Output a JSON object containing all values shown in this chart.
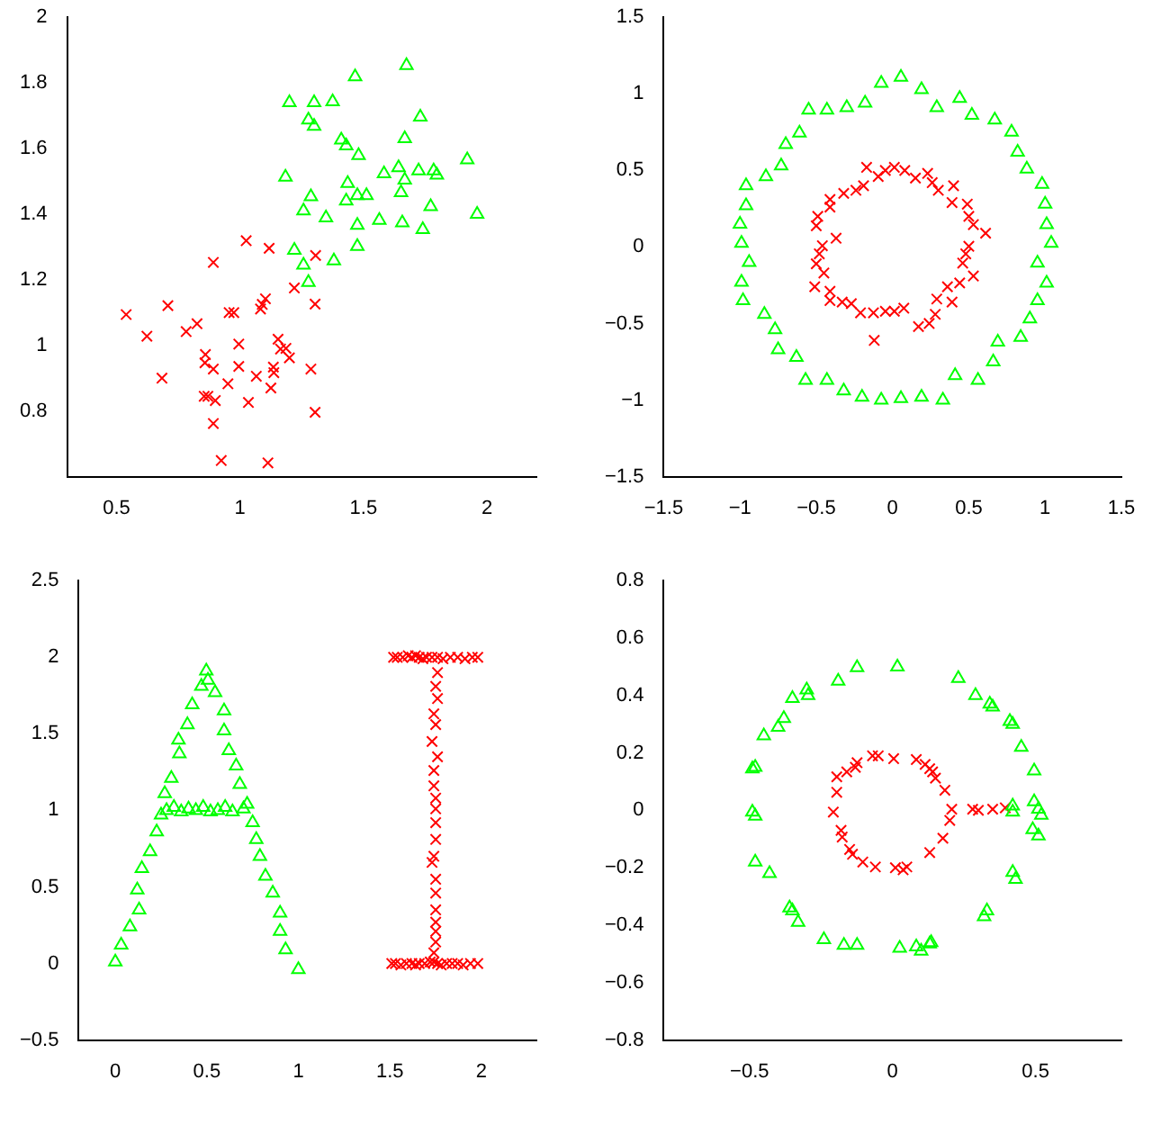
{
  "chart_data": [
    {
      "type": "scatter",
      "xlim": [
        0.3,
        2.2
      ],
      "ylim": [
        0.6,
        2
      ],
      "xticks": [
        0.5,
        1,
        1.5,
        2
      ],
      "yticks": [
        0.8,
        1,
        1.2,
        1.4,
        1.6,
        1.8,
        2
      ],
      "grid": false,
      "legend": false,
      "series": [
        {
          "color": "#00ff00",
          "marker": "triangle",
          "x": [
            1.674,
            1.466,
            1.2,
            1.3,
            1.375,
            1.73,
            1.277,
            1.3,
            1.667,
            1.41,
            1.43,
            1.48,
            1.92,
            1.184,
            1.583,
            1.642,
            1.723,
            1.784,
            1.797,
            1.667,
            1.436,
            1.287,
            1.475,
            1.512,
            1.652,
            1.43,
            1.257,
            1.772,
            1.96,
            1.348,
            1.564,
            1.475,
            1.657,
            1.74,
            1.475,
            1.22,
            1.38,
            1.257,
            1.277
          ],
          "values": [
            1.853,
            1.819,
            1.74,
            1.74,
            1.743,
            1.696,
            1.687,
            1.668,
            1.63,
            1.626,
            1.608,
            1.579,
            1.566,
            1.513,
            1.523,
            1.542,
            1.532,
            1.532,
            1.519,
            1.504,
            1.494,
            1.453,
            1.457,
            1.457,
            1.466,
            1.44,
            1.41,
            1.423,
            1.4,
            1.389,
            1.381,
            1.366,
            1.374,
            1.353,
            1.302,
            1.29,
            1.258,
            1.245,
            1.192
          ]
        },
        {
          "color": "#ff0000",
          "marker": "cross",
          "x": [
            0.539,
            0.623,
            0.708,
            0.684,
            0.782,
            0.826,
            0.892,
            0.86,
            0.858,
            0.892,
            0.855,
            0.87,
            0.9,
            0.892,
            0.924,
            0.956,
            0.975,
            0.995,
            0.995,
            0.951,
            1.034,
            1.025,
            1.066,
            1.083,
            1.09,
            1.103,
            1.118,
            1.113,
            1.125,
            1.135,
            1.137,
            1.154,
            1.164,
            1.186,
            1.2,
            1.22,
            1.306,
            1.304,
            1.287,
            1.304
          ],
          "values": [
            1.094,
            1.028,
            1.121,
            0.9,
            1.042,
            1.066,
            1.253,
            0.972,
            0.947,
            0.928,
            0.845,
            0.845,
            0.832,
            0.762,
            0.649,
            1.1,
            1.1,
            1.004,
            0.936,
            0.883,
            0.826,
            1.319,
            0.906,
            1.111,
            1.125,
            1.142,
            1.296,
            0.642,
            0.87,
            0.934,
            0.917,
            1.019,
            0.989,
            0.991,
            0.962,
            1.175,
            1.274,
            1.126,
            0.928,
            0.796
          ]
        }
      ]
    },
    {
      "type": "scatter",
      "xlim": [
        -1.5,
        1.5
      ],
      "ylim": [
        -1.5,
        1.5
      ],
      "xticks": [
        -1.5,
        -1,
        -0.5,
        0,
        0.5,
        1,
        1.5
      ],
      "yticks": [
        -1.5,
        -1,
        -0.5,
        0,
        0.5,
        1,
        1.5
      ],
      "grid": false,
      "legend": false,
      "series": [
        {
          "color": "#00ff00",
          "marker": "triangle",
          "x": [
            -0.074,
            0.055,
            0.19,
            0.29,
            0.44,
            0.52,
            0.67,
            0.78,
            0.82,
            0.88,
            0.98,
            1.0,
            1.01,
            1.04,
            0.95,
            1.01,
            0.95,
            0.9,
            0.84,
            0.69,
            0.66,
            0.56,
            0.41,
            0.33,
            0.19,
            0.055,
            -0.074,
            -0.2,
            -0.32,
            -0.43,
            -0.57,
            -0.63,
            -0.75,
            -0.77,
            -0.84,
            -0.98,
            -0.99,
            -0.94,
            -0.99,
            -1.0,
            -0.96,
            -0.96,
            -0.83,
            -0.73,
            -0.7,
            -0.61,
            -0.55,
            -0.43,
            -0.3,
            -0.18
          ],
          "values": [
            1.069,
            1.109,
            1.028,
            0.91,
            0.97,
            0.86,
            0.83,
            0.75,
            0.62,
            0.51,
            0.41,
            0.28,
            0.146,
            0.024,
            -0.105,
            -0.235,
            -0.35,
            -0.47,
            -0.59,
            -0.62,
            -0.75,
            -0.87,
            -0.84,
            -1.0,
            -0.98,
            -0.99,
            -1.0,
            -0.98,
            -0.94,
            -0.87,
            -0.87,
            -0.72,
            -0.67,
            -0.54,
            -0.44,
            -0.35,
            -0.23,
            -0.1,
            0.024,
            0.15,
            0.27,
            0.4,
            0.46,
            0.53,
            0.67,
            0.745,
            0.895,
            0.895,
            0.91,
            0.94
          ]
        },
        {
          "color": "#ff0000",
          "marker": "cross",
          "x": [
            -0.17,
            -0.094,
            -0.047,
            0.012,
            0.08,
            0.15,
            0.23,
            0.26,
            0.3,
            0.4,
            0.39,
            0.49,
            0.5,
            0.53,
            0.61,
            0.5,
            0.48,
            0.46,
            0.53,
            0.44,
            0.36,
            0.39,
            0.29,
            0.28,
            0.24,
            0.17,
            0.074,
            0.012,
            -0.047,
            -0.125,
            -0.12,
            -0.21,
            -0.27,
            -0.33,
            -0.41,
            -0.41,
            -0.51,
            -0.45,
            -0.5,
            -0.48,
            -0.46,
            -0.37,
            -0.5,
            -0.49,
            -0.41,
            -0.41,
            -0.32,
            -0.24,
            -0.19
          ],
          "values": [
            0.52,
            0.46,
            0.5,
            0.52,
            0.5,
            0.45,
            0.48,
            0.42,
            0.37,
            0.4,
            0.29,
            0.28,
            0.2,
            0.146,
            0.09,
            0.004,
            -0.045,
            -0.105,
            -0.19,
            -0.235,
            -0.26,
            -0.36,
            -0.34,
            -0.44,
            -0.5,
            -0.52,
            -0.4,
            -0.42,
            -0.42,
            -0.43,
            -0.61,
            -0.43,
            -0.37,
            -0.36,
            -0.35,
            -0.29,
            -0.26,
            -0.17,
            -0.11,
            -0.045,
            0.008,
            0.057,
            0.138,
            0.2,
            0.26,
            0.31,
            0.35,
            0.37,
            0.4
          ]
        }
      ]
    },
    {
      "type": "scatter",
      "xlim": [
        -0.2,
        2.3
      ],
      "ylim": [
        -0.5,
        2.5
      ],
      "xticks": [
        0,
        0.5,
        1,
        1.5,
        2
      ],
      "yticks": [
        -0.5,
        0,
        0.5,
        1,
        1.5,
        2,
        2.5
      ],
      "grid": false,
      "legend": false,
      "series": [
        {
          "color": "#00ff00",
          "marker": "triangle",
          "x": [
            0,
            0.032,
            0.08,
            0.13,
            0.12,
            0.145,
            0.19,
            0.226,
            0.25,
            0.27,
            0.306,
            0.35,
            0.345,
            0.394,
            0.42,
            0.47,
            0.497,
            0.506,
            0.545,
            0.594,
            0.594,
            0.62,
            0.66,
            0.68,
            0.72,
            0.75,
            0.77,
            0.79,
            0.82,
            0.86,
            0.9,
            0.9,
            0.93,
            1.0,
            0.28,
            0.32,
            0.36,
            0.4,
            0.44,
            0.48,
            0.52,
            0.56,
            0.6,
            0.64,
            0.7
          ],
          "values": [
            0.01,
            0.12,
            0.24,
            0.35,
            0.48,
            0.62,
            0.73,
            0.86,
            0.97,
            1.11,
            1.21,
            1.37,
            1.46,
            1.56,
            1.69,
            1.81,
            1.91,
            1.85,
            1.77,
            1.65,
            1.52,
            1.39,
            1.29,
            1.17,
            1.04,
            0.92,
            0.81,
            0.7,
            0.57,
            0.46,
            0.33,
            0.21,
            0.09,
            -0.04,
            1.0,
            1.02,
            0.99,
            1.01,
            1.0,
            1.02,
            0.99,
            1.0,
            1.02,
            0.99,
            1.01
          ]
        },
        {
          "color": "#ff0000",
          "marker": "cross",
          "x": [
            1.52,
            1.54,
            1.57,
            1.6,
            1.62,
            1.64,
            1.66,
            1.68,
            1.7,
            1.73,
            1.76,
            1.79,
            1.83,
            1.87,
            1.91,
            1.95,
            1.98,
            1.76,
            1.75,
            1.76,
            1.74,
            1.75,
            1.73,
            1.76,
            1.74,
            1.74,
            1.75,
            1.75,
            1.75,
            1.75,
            1.74,
            1.73,
            1.75,
            1.75,
            1.75,
            1.75,
            1.75,
            1.75,
            1.74,
            1.51,
            1.53,
            1.56,
            1.59,
            1.62,
            1.64,
            1.66,
            1.69,
            1.72,
            1.74,
            1.76,
            1.78,
            1.81,
            1.84,
            1.87,
            1.9,
            1.94,
            1.98
          ],
          "values": [
            2.0,
            2.0,
            2.0,
            2.01,
            2.0,
            2.01,
            2.0,
            1.99,
            2.0,
            2.0,
            2.0,
            1.99,
            2.0,
            2.0,
            1.99,
            2.0,
            2.0,
            1.9,
            1.81,
            1.73,
            1.63,
            1.56,
            1.45,
            1.35,
            1.26,
            1.16,
            1.08,
            1.01,
            0.92,
            0.81,
            0.7,
            0.66,
            0.55,
            0.46,
            0.35,
            0.27,
            0.21,
            0.14,
            0.07,
            0.0,
            0.0,
            -0.01,
            0.0,
            0.0,
            -0.01,
            0.0,
            0.0,
            0.01,
            0.01,
            0.0,
            -0.01,
            0.0,
            0.0,
            0.0,
            -0.01,
            0.0,
            0.0
          ]
        }
      ]
    },
    {
      "type": "scatter",
      "xlim": [
        -0.8,
        0.8
      ],
      "ylim": [
        -0.8,
        0.8
      ],
      "xticks": [
        -0.5,
        0,
        0.5
      ],
      "yticks": [
        -0.8,
        -0.6,
        -0.4,
        -0.2,
        0,
        0.2,
        0.4,
        0.6,
        0.8
      ],
      "grid": false,
      "legend": false,
      "series": [
        {
          "color": "#00ff00",
          "marker": "triangle",
          "x": [
            0.017,
            -0.124,
            -0.19,
            -0.295,
            -0.3,
            -0.35,
            -0.38,
            -0.4,
            -0.45,
            -0.48,
            -0.49,
            -0.49,
            -0.48,
            -0.48,
            -0.43,
            -0.36,
            -0.35,
            -0.33,
            -0.24,
            -0.17,
            -0.124,
            0.025,
            0.083,
            0.1,
            0.13,
            0.135,
            0.23,
            0.29,
            0.34,
            0.35,
            0.41,
            0.42,
            0.45,
            0.495,
            0.495,
            0.51,
            0.52,
            0.42,
            0.42,
            0.49,
            0.51,
            0.42,
            0.43,
            0.33,
            0.32
          ],
          "values": [
            0.5,
            0.497,
            0.45,
            0.4,
            0.42,
            0.39,
            0.32,
            0.29,
            0.26,
            0.15,
            0.145,
            -0.006,
            -0.02,
            -0.18,
            -0.22,
            -0.34,
            -0.35,
            -0.39,
            -0.45,
            -0.47,
            -0.47,
            -0.48,
            -0.475,
            -0.49,
            -0.465,
            -0.46,
            0.46,
            0.4,
            0.37,
            0.36,
            0.31,
            0.3,
            0.22,
            0.138,
            0.03,
            0.004,
            -0.017,
            0.015,
            -0.006,
            -0.067,
            -0.089,
            -0.216,
            -0.24,
            -0.35,
            -0.37
          ]
        },
        {
          "color": "#ff0000",
          "marker": "cross",
          "x": [
            0.004,
            -0.05,
            -0.07,
            -0.124,
            -0.13,
            -0.16,
            -0.195,
            -0.195,
            -0.207,
            -0.18,
            -0.176,
            -0.15,
            -0.14,
            -0.104,
            -0.06,
            0.01,
            0.037,
            0.05,
            0.13,
            0.176,
            0.2,
            0.207,
            0.183,
            0.15,
            0.14,
            0.114,
            0.083,
            0.13,
            0.28,
            0.3,
            0.35,
            0.394
          ],
          "values": [
            0.18,
            0.19,
            0.19,
            0.166,
            0.15,
            0.134,
            0.117,
            0.063,
            -0.006,
            -0.07,
            -0.093,
            -0.136,
            -0.153,
            -0.18,
            -0.197,
            -0.2,
            -0.207,
            -0.197,
            -0.147,
            -0.097,
            -0.035,
            0.004,
            0.07,
            0.112,
            0.134,
            0.16,
            0.177,
            0.145,
            0.004,
            0.0,
            0.004,
            0.009
          ]
        }
      ]
    }
  ]
}
